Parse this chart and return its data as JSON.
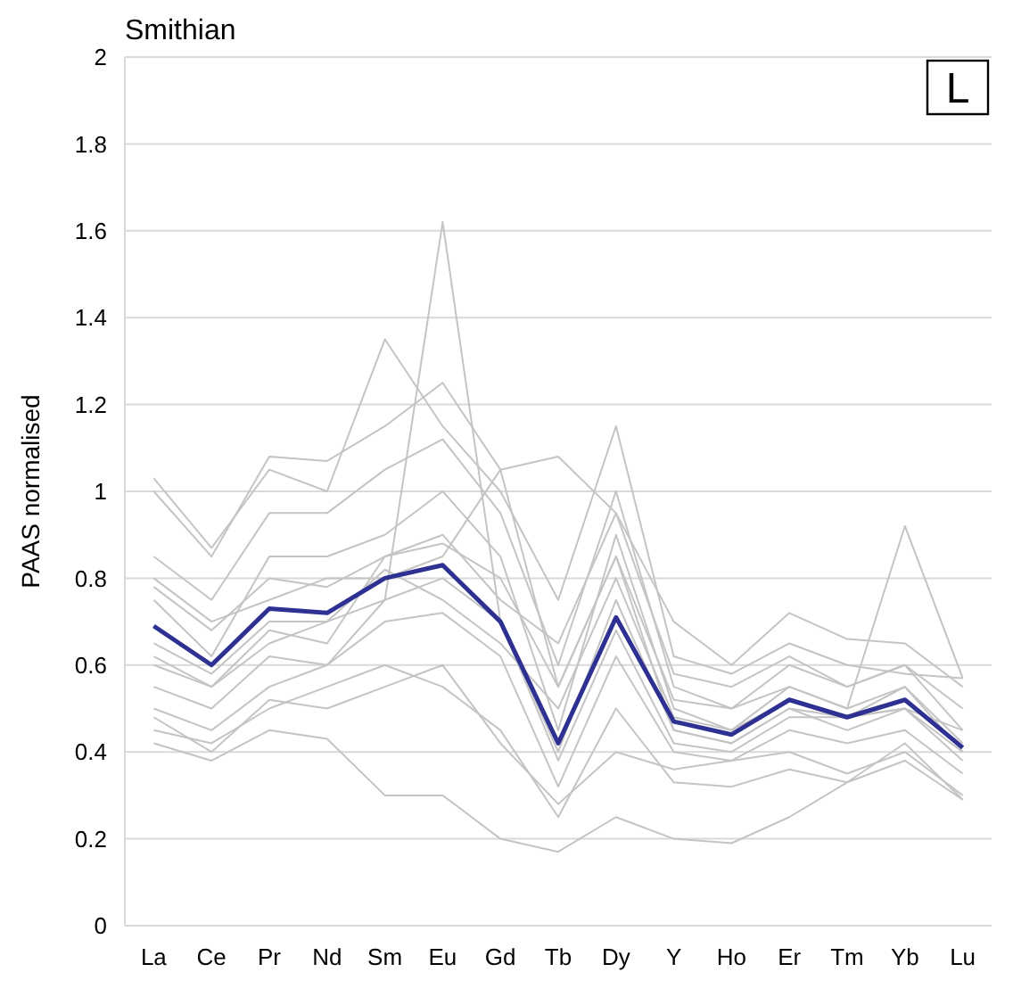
{
  "chart_data": {
    "type": "line",
    "title": "Smithian",
    "ylabel": "PAAS normalised",
    "annotations": [
      "L"
    ],
    "categories": [
      "La",
      "Ce",
      "Pr",
      "Nd",
      "Sm",
      "Eu",
      "Gd",
      "Tb",
      "Dy",
      "Y",
      "Ho",
      "Er",
      "Tm",
      "Yb",
      "Lu"
    ],
    "ylim": [
      0,
      2
    ],
    "yticks": [
      0,
      0.2,
      0.4,
      0.6,
      0.8,
      1,
      1.2,
      1.4,
      1.6,
      1.8,
      2
    ],
    "grid": "y",
    "marker": "none",
    "line_style": "solid",
    "series": [
      {
        "color": "#c4c4c4",
        "values": [
          0.62,
          0.55,
          0.65,
          0.7,
          0.75,
          1.62,
          0.7,
          0.4,
          0.75,
          0.45,
          0.42,
          0.5,
          0.48,
          0.5,
          0.4
        ]
      },
      {
        "color": "#c4c4c4",
        "values": [
          1.03,
          0.87,
          1.05,
          1.0,
          1.35,
          1.15,
          1.0,
          0.75,
          1.15,
          0.62,
          0.58,
          0.65,
          0.6,
          0.58,
          0.57
        ]
      },
      {
        "color": "#c4c4c4",
        "values": [
          1.0,
          0.85,
          1.08,
          1.07,
          1.15,
          1.25,
          1.05,
          1.08,
          0.95,
          0.7,
          0.6,
          0.72,
          0.66,
          0.65,
          0.55
        ]
      },
      {
        "color": "#c4c4c4",
        "values": [
          0.78,
          0.68,
          0.8,
          0.78,
          0.85,
          0.88,
          0.8,
          0.55,
          0.85,
          0.52,
          0.5,
          0.55,
          0.5,
          0.92,
          0.57
        ]
      },
      {
        "color": "#c4c4c4",
        "values": [
          0.42,
          0.38,
          0.45,
          0.43,
          0.3,
          0.3,
          0.2,
          0.17,
          0.25,
          0.2,
          0.19,
          0.25,
          0.33,
          0.38,
          0.29
        ]
      },
      {
        "color": "#c4c4c4",
        "values": [
          0.45,
          0.42,
          0.5,
          0.55,
          0.6,
          0.55,
          0.45,
          0.25,
          0.5,
          0.33,
          0.32,
          0.36,
          0.33,
          0.42,
          0.29
        ]
      },
      {
        "color": "#c4c4c4",
        "values": [
          0.85,
          0.75,
          0.95,
          0.95,
          1.05,
          1.12,
          0.95,
          0.6,
          1.0,
          0.55,
          0.5,
          0.6,
          0.55,
          0.6,
          0.45
        ]
      },
      {
        "color": "#c4c4c4",
        "values": [
          0.55,
          0.5,
          0.62,
          0.6,
          0.7,
          0.72,
          0.62,
          0.32,
          0.62,
          0.4,
          0.38,
          0.45,
          0.42,
          0.45,
          0.35
        ]
      },
      {
        "color": "#c4c4c4",
        "values": [
          0.75,
          0.62,
          0.85,
          0.85,
          0.9,
          1.0,
          0.85,
          0.45,
          0.9,
          0.5,
          0.45,
          0.55,
          0.5,
          0.55,
          0.42
        ]
      },
      {
        "color": "#c4c4c4",
        "values": [
          0.5,
          0.45,
          0.55,
          0.6,
          0.75,
          0.8,
          0.7,
          0.38,
          0.68,
          0.42,
          0.4,
          0.48,
          0.48,
          0.5,
          0.38
        ]
      },
      {
        "color": "#c4c4c4",
        "values": [
          0.65,
          0.58,
          0.7,
          0.7,
          0.82,
          0.75,
          0.65,
          0.5,
          0.8,
          0.48,
          0.45,
          0.52,
          0.48,
          0.55,
          0.4
        ]
      },
      {
        "color": "#c4c4c4",
        "values": [
          0.8,
          0.7,
          0.75,
          0.8,
          0.8,
          0.85,
          1.05,
          0.55,
          0.85,
          0.45,
          0.42,
          0.5,
          0.45,
          0.5,
          0.45
        ]
      },
      {
        "color": "#c4c4c4",
        "values": [
          0.48,
          0.4,
          0.52,
          0.5,
          0.55,
          0.6,
          0.42,
          0.28,
          0.4,
          0.36,
          0.38,
          0.4,
          0.35,
          0.4,
          0.3
        ]
      },
      {
        "color": "#c4c4c4",
        "values": [
          0.6,
          0.55,
          0.68,
          0.65,
          0.85,
          0.9,
          0.75,
          0.65,
          0.95,
          0.58,
          0.55,
          0.62,
          0.55,
          0.6,
          0.5
        ]
      },
      {
        "color": "#2e3192",
        "values": [
          0.69,
          0.6,
          0.73,
          0.72,
          0.8,
          0.83,
          0.7,
          0.42,
          0.71,
          0.47,
          0.44,
          0.52,
          0.48,
          0.52,
          0.41
        ]
      }
    ]
  }
}
